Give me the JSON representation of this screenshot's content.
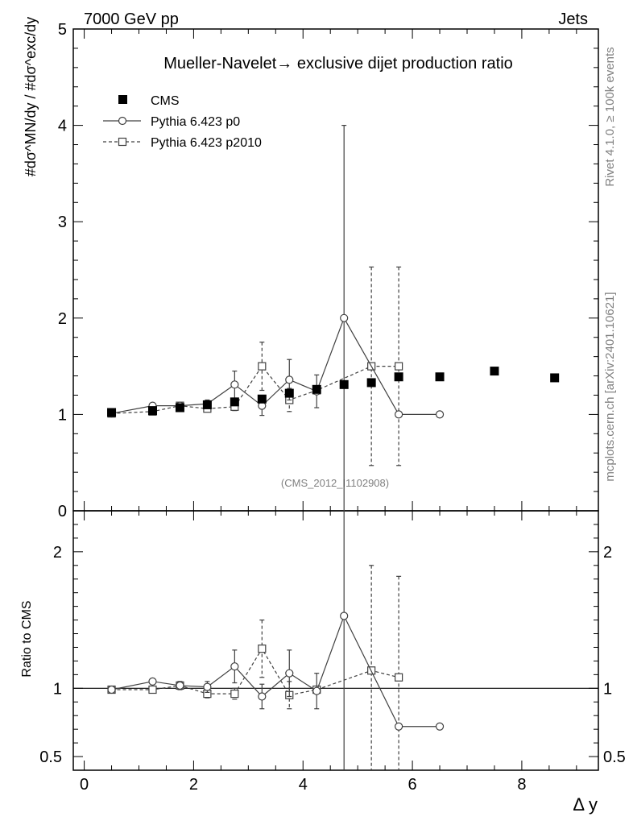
{
  "header": {
    "left": "7000 GeV pp",
    "right": "Jets"
  },
  "side_labels": {
    "rivet": "Rivet 4.1.0, ≥ 100k events",
    "mcplots": "mcplots.cern.ch [arXiv:2401.10621]"
  },
  "colors": {
    "data": "#000000",
    "mc": "#404040",
    "watermark": "#808080"
  },
  "chart_data": {
    "type": "scatter",
    "title": "Mueller-Navelet→ exclusive dijet production ratio",
    "analysis_id": "(CMS_2012_I1102908)",
    "xlabel": "Δ y",
    "ylabel": "#dσ^MN/dy / #dσ^exc/dy",
    "xlim": [
      -0.2,
      9.4
    ],
    "ylim": [
      0,
      5
    ],
    "xticks": [
      0,
      2,
      4,
      6,
      8
    ],
    "yticks": [
      0,
      1,
      2,
      3,
      4,
      5
    ],
    "legend": [
      "CMS",
      "Pythia 6.423 p0",
      "Pythia 6.423 p2010"
    ],
    "series": [
      {
        "name": "CMS",
        "marker": "filled-square",
        "x": [
          0.5,
          1.25,
          1.75,
          2.25,
          2.75,
          3.25,
          3.75,
          4.25,
          4.75,
          5.25,
          5.75,
          6.5,
          7.5,
          8.6
        ],
        "y": [
          1.02,
          1.04,
          1.07,
          1.1,
          1.13,
          1.16,
          1.22,
          1.26,
          1.31,
          1.33,
          1.39,
          1.39,
          1.45,
          1.38
        ],
        "err": [
          0.01,
          0.01,
          0.01,
          0.01,
          0.01,
          0.01,
          0.01,
          0.01,
          0.01,
          0.01,
          0.01,
          0.01,
          0.01,
          0.01
        ]
      },
      {
        "name": "Pythia 6.423 p0",
        "marker": "open-circle",
        "x": [
          0.5,
          1.25,
          1.75,
          2.25,
          2.75,
          3.25,
          3.75,
          4.25,
          4.75,
          5.75,
          6.5
        ],
        "y": [
          1.01,
          1.09,
          1.09,
          1.11,
          1.31,
          1.09,
          1.36,
          1.24,
          2.0,
          1.0,
          1.0
        ],
        "err": [
          0.01,
          0.02,
          0.03,
          0.04,
          0.14,
          0.1,
          0.21,
          0.17,
          2.0,
          0.0,
          0.0
        ]
      },
      {
        "name": "Pythia 6.423 p2010",
        "marker": "open-square",
        "x": [
          0.5,
          1.25,
          1.75,
          2.25,
          2.75,
          3.25,
          3.75,
          4.25,
          5.25,
          5.75
        ],
        "y": [
          1.01,
          1.03,
          1.09,
          1.06,
          1.08,
          1.5,
          1.15,
          1.25,
          1.5,
          1.5
        ],
        "err": [
          0.01,
          0.02,
          0.02,
          0.03,
          0.04,
          0.25,
          0.12,
          0.02,
          1.03,
          1.03
        ]
      }
    ],
    "ratio_panel": {
      "ylabel": "Ratio to CMS",
      "ylim": [
        0.4,
        2.3
      ],
      "yticks": [
        0.5,
        1,
        2
      ],
      "ytick_labels": [
        "0.5",
        "1",
        "2"
      ],
      "series": [
        {
          "name": "Pythia 6.423 p0",
          "x": [
            0.5,
            1.25,
            1.75,
            2.25,
            2.75,
            3.25,
            3.75,
            4.25,
            4.75,
            5.75,
            6.5
          ],
          "y": [
            0.99,
            1.05,
            1.02,
            1.01,
            1.16,
            0.94,
            1.11,
            0.98,
            1.53,
            0.72,
            0.72
          ],
          "err": [
            0.01,
            0.02,
            0.03,
            0.04,
            0.12,
            0.09,
            0.17,
            0.13,
            1.53,
            0.0,
            0.0
          ]
        },
        {
          "name": "Pythia 6.423 p2010",
          "x": [
            0.5,
            1.25,
            1.75,
            2.25,
            2.75,
            3.25,
            3.75,
            4.25,
            5.25,
            5.75
          ],
          "y": [
            0.99,
            0.99,
            1.02,
            0.96,
            0.96,
            1.29,
            0.95,
            0.99,
            1.13,
            1.08
          ],
          "err": [
            0.01,
            0.02,
            0.02,
            0.03,
            0.04,
            0.21,
            0.1,
            0.02,
            0.77,
            0.74
          ]
        }
      ]
    }
  }
}
